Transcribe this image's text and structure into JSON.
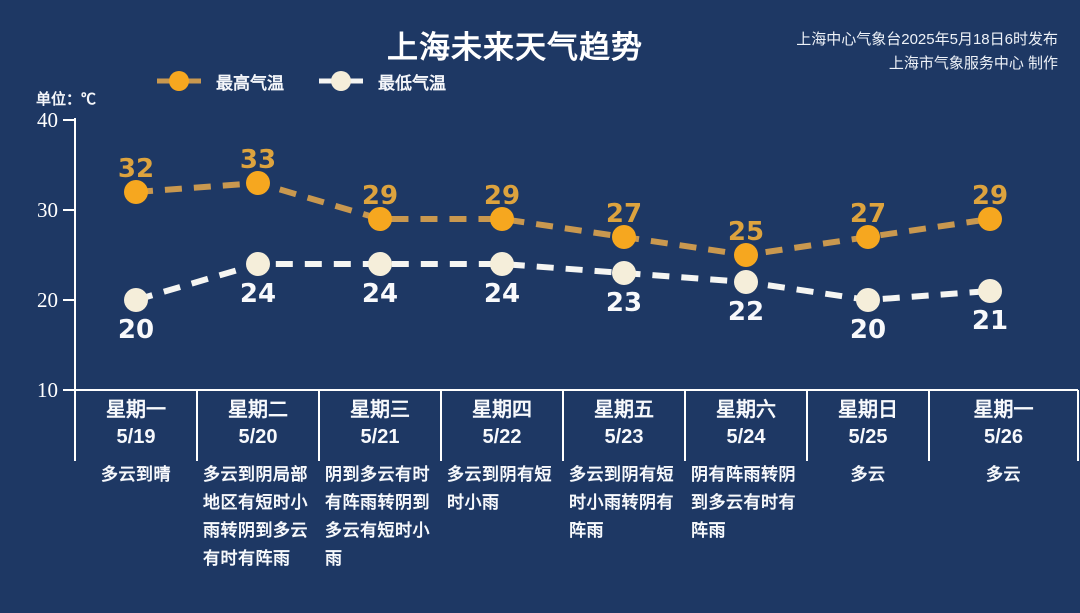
{
  "app": {
    "background_color": "#1e3864"
  },
  "header": {
    "title": "上海未来天气趋势",
    "source_line1": "上海中心气象台2025年5月18日6时发布",
    "source_line2": "上海市气象服务中心 制作"
  },
  "chart": {
    "unit_label": "单位：℃"
  },
  "chart_data": {
    "type": "line",
    "title": "上海未来天气趋势",
    "unit": "℃",
    "ylim": [
      10,
      40
    ],
    "y_ticks": [
      40,
      30,
      20,
      10
    ],
    "grid": false,
    "legend_position": "top-left",
    "line_style": "dashed",
    "categories": [
      {
        "week": "星期一",
        "date": "5/19",
        "weather": "多云到晴"
      },
      {
        "week": "星期二",
        "date": "5/20",
        "weather": "多云到阴局部地区有短时小雨转阴到多云有时有阵雨"
      },
      {
        "week": "星期三",
        "date": "5/21",
        "weather": "阴到多云有时有阵雨转阴到多云有短时小雨"
      },
      {
        "week": "星期四",
        "date": "5/22",
        "weather": "多云到阴有短时小雨"
      },
      {
        "week": "星期五",
        "date": "5/23",
        "weather": "多云到阴有短时小雨转阴有阵雨"
      },
      {
        "week": "星期六",
        "date": "5/24",
        "weather": "阴有阵雨转阴到多云有时有阵雨"
      },
      {
        "week": "星期日",
        "date": "5/25",
        "weather": "多云"
      },
      {
        "week": "星期一",
        "date": "5/26",
        "weather": "多云"
      }
    ],
    "series": [
      {
        "name": "最高气温",
        "values": [
          32,
          33,
          29,
          29,
          27,
          25,
          27,
          29
        ],
        "line_color": "#c9984f",
        "marker_color": "#f6a71f",
        "label_color": "#dda33e"
      },
      {
        "name": "最低气温",
        "values": [
          20,
          24,
          24,
          24,
          23,
          22,
          20,
          21
        ],
        "line_color": "#f5f5f2",
        "marker_color": "#f5eeda",
        "label_color": "#f8f9fb"
      }
    ],
    "axis_color": "#ffffff"
  }
}
